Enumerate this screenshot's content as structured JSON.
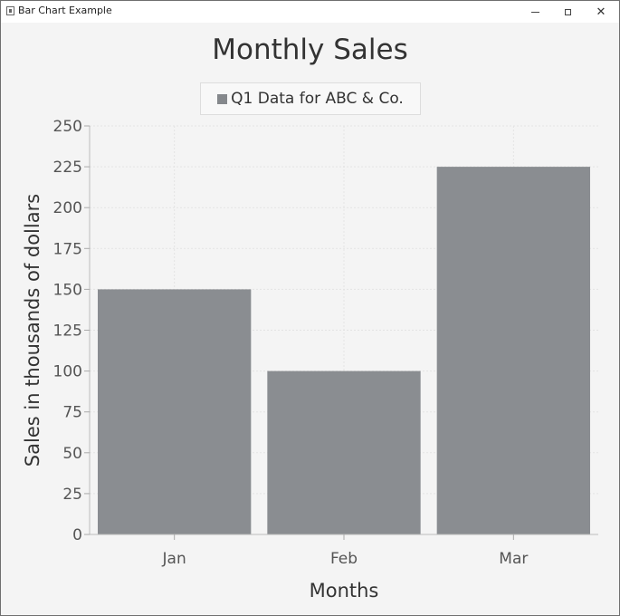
{
  "window": {
    "title": "Bar Chart Example"
  },
  "chart_data": {
    "type": "bar",
    "title": "Monthly Sales",
    "xlabel": "Months",
    "ylabel": "Sales in thousands of dollars",
    "categories": [
      "Jan",
      "Feb",
      "Mar"
    ],
    "series": [
      {
        "name": "Q1 Data for ABC & Co.",
        "values": [
          150,
          100,
          225
        ]
      }
    ],
    "ylim": [
      0,
      250
    ],
    "yticks": [
      0,
      25,
      50,
      75,
      100,
      125,
      150,
      175,
      200,
      225,
      250
    ],
    "grid": true,
    "legend": "top-center",
    "bar_color": "#8a8d91"
  }
}
